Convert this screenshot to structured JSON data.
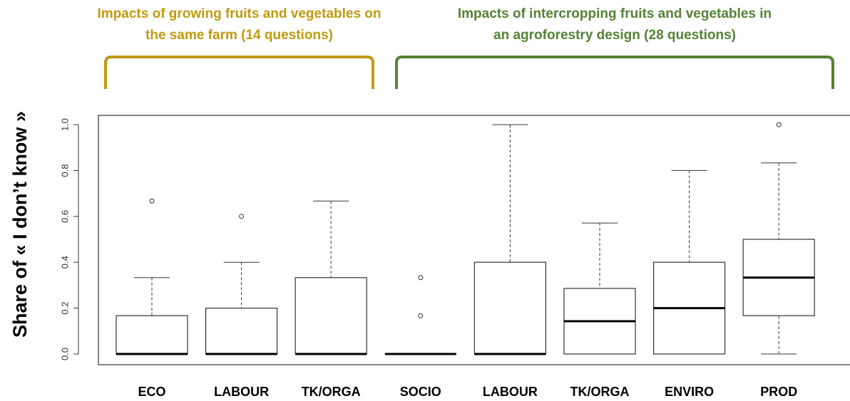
{
  "chart_data": {
    "type": "box",
    "ylabel": "Share of « I don’t know »",
    "groups": [
      {
        "title": [
          "Impacts of growing fruits and vegetables on",
          "the same farm (14 questions)"
        ],
        "color": "#c09a10"
      },
      {
        "title": [
          "Impacts of intercropping fruits and vegetables in",
          "an agroforestry design (28 questions)"
        ],
        "color": "#548235"
      }
    ],
    "categories": [
      "ECO",
      "LABOUR",
      "TK/ORGA",
      "SOCIO",
      "LABOUR",
      "TK/ORGA",
      "ENVIRO",
      "PROD"
    ],
    "boxes": [
      {
        "min": 0,
        "q1": 0,
        "median": 0,
        "q3": 0.167,
        "max": 0.333,
        "outliers": [
          0.667
        ]
      },
      {
        "min": 0,
        "q1": 0,
        "median": 0,
        "q3": 0.2,
        "max": 0.4,
        "outliers": [
          0.6
        ]
      },
      {
        "min": 0,
        "q1": 0,
        "median": 0,
        "q3": 0.333,
        "max": 0.667,
        "outliers": []
      },
      {
        "min": 0,
        "q1": 0,
        "median": 0,
        "q3": 0,
        "max": 0,
        "outliers": [
          0.333,
          0.167
        ]
      },
      {
        "min": 0,
        "q1": 0,
        "median": 0,
        "q3": 0.4,
        "max": 1.0,
        "outliers": []
      },
      {
        "min": 0,
        "q1": 0,
        "median": 0.143,
        "q3": 0.286,
        "max": 0.571,
        "outliers": []
      },
      {
        "min": 0,
        "q1": 0,
        "median": 0.2,
        "q3": 0.4,
        "max": 0.8,
        "outliers": []
      },
      {
        "min": 0,
        "q1": 0.167,
        "median": 0.333,
        "q3": 0.5,
        "max": 0.833,
        "outliers": [
          1.0
        ]
      }
    ],
    "ylim": [
      0,
      1
    ],
    "yticks": [
      {
        "value": 0,
        "label": "0.0"
      },
      0.2,
      0.4,
      0.6,
      0.8,
      {
        "value": 1,
        "label": "1.0"
      }
    ]
  }
}
